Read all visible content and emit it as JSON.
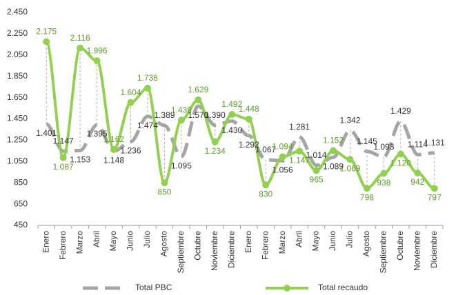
{
  "chart_data": {
    "type": "line",
    "categories": [
      "Enero",
      "Febrero",
      "Marzo",
      "Abril",
      "Mayo",
      "Junio",
      "Julio",
      "Agosto",
      "Septiembre",
      "Octubre",
      "Noviembre",
      "Diciembre",
      "Enero",
      "Febrero",
      "Marzo",
      "Abril",
      "Mayo",
      "Junio",
      "Julio",
      "Agosto",
      "Septiembre",
      "Octubre",
      "Noviembre",
      "Diciembre"
    ],
    "series": [
      {
        "name": "Total PBC",
        "color": "#a6a6a6",
        "dashed": true,
        "values": [
          1401,
          1147,
          1153,
          1395,
          1148,
          1236,
          1474,
          1389,
          1095,
          1570,
          1390,
          1430,
          1292,
          1067,
          1056,
          1281,
          1014,
          1089,
          1342,
          1145,
          1093,
          1429,
          1114,
          1131
        ],
        "value_labels": [
          "1.401",
          "1.147",
          "1.153",
          "1.395",
          "1.148",
          "1.236",
          "1.474",
          "1.389",
          "1.095",
          "1.570",
          "1.390",
          "1.430",
          "1.292",
          "1.067",
          "1.056",
          "1.281",
          "1.014",
          "1.089",
          "1.342",
          "1.145",
          "1.093",
          "1.429",
          "1.114",
          "1.131"
        ],
        "label_color": "#333333"
      },
      {
        "name": "Total recaudo",
        "color": "#92d050",
        "markers": true,
        "values": [
          2175,
          1087,
          2116,
          1996,
          1162,
          1604,
          1738,
          850,
          1439,
          1629,
          1234,
          1492,
          1448,
          830,
          1094,
          1147,
          965,
          1152,
          1069,
          798,
          938,
          1120,
          942,
          797
        ],
        "value_labels": [
          "2.175",
          "1.087",
          "2.116",
          "1.996",
          "1.162",
          "1.604",
          "1.738",
          "850",
          "1.439",
          "1.629",
          "1.234",
          "1.492",
          "1.448",
          "830",
          "1.094",
          "1.147",
          "965",
          "1.152",
          "1.069",
          "798",
          "938",
          "1.120",
          "942",
          "797"
        ],
        "label_color": "#5e9e2a"
      }
    ],
    "ylim": [
      450,
      2450
    ],
    "yticks": [
      {
        "value": 450,
        "label": "450"
      },
      {
        "value": 650,
        "label": "650"
      },
      {
        "value": 850,
        "label": "850"
      },
      {
        "value": 1050,
        "label": "1.050"
      },
      {
        "value": 1250,
        "label": "1.250"
      },
      {
        "value": 1450,
        "label": "1.450"
      },
      {
        "value": 1650,
        "label": "1.650"
      },
      {
        "value": 1850,
        "label": "1.850"
      },
      {
        "value": 2050,
        "label": "2.050"
      },
      {
        "value": 2250,
        "label": "2.250"
      },
      {
        "value": 2450,
        "label": "2.450"
      }
    ],
    "legend": "bottom"
  }
}
